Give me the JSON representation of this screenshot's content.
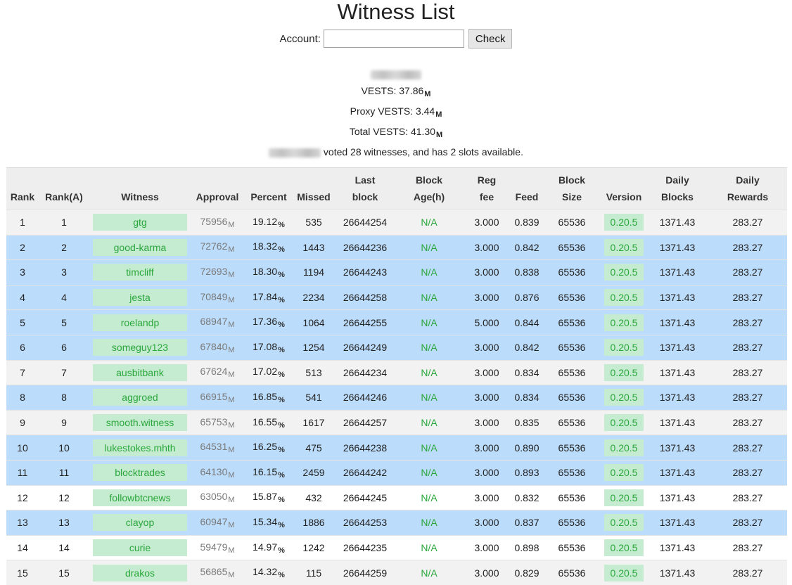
{
  "page": {
    "title": "Witness List",
    "account_label": "Account:",
    "account_value": "",
    "check_label": "Check"
  },
  "summary": {
    "vests_label": "VESTS: 37.86",
    "proxy_label": "Proxy VESTS: 3.44",
    "total_label": "Total VESTS: 41.30",
    "unit": "M",
    "voted_text": "voted 28 witnesses, and has 2 slots available."
  },
  "table": {
    "headers": {
      "rank": "Rank",
      "rank_a": "Rank(A)",
      "witness": "Witness",
      "approval": "Approval",
      "percent": "Percent",
      "missed": "Missed",
      "last_block_1": "Last",
      "last_block_2": "block",
      "block_age_1": "Block",
      "block_age_2": "Age(h)",
      "reg_fee_1": "Reg",
      "reg_fee_2": "fee",
      "feed": "Feed",
      "block_size_1": "Block",
      "block_size_2": "Size",
      "version": "Version",
      "daily_blocks_1": "Daily",
      "daily_blocks_2": "Blocks",
      "daily_rewards_1": "Daily",
      "daily_rewards_2": "Rewards"
    },
    "approval_unit": "M",
    "percent_unit": "%",
    "rows": [
      {
        "rank": "1",
        "rank_a": "1",
        "witness": "gtg",
        "approval": "75956",
        "percent": "19.12",
        "missed": "535",
        "last_block": "26644254",
        "block_age": "N/A",
        "reg_fee": "3.000",
        "feed": "0.839",
        "block_size": "65536",
        "version": "0.20.5",
        "daily_blocks": "1371.43",
        "daily_rewards": "283.27",
        "bg": "g"
      },
      {
        "rank": "2",
        "rank_a": "2",
        "witness": "good-karma",
        "approval": "72762",
        "percent": "18.32",
        "missed": "1443",
        "last_block": "26644236",
        "block_age": "N/A",
        "reg_fee": "3.000",
        "feed": "0.842",
        "block_size": "65536",
        "version": "0.20.5",
        "daily_blocks": "1371.43",
        "daily_rewards": "283.27",
        "bg": "b"
      },
      {
        "rank": "3",
        "rank_a": "3",
        "witness": "timcliff",
        "approval": "72693",
        "percent": "18.30",
        "missed": "1194",
        "last_block": "26644243",
        "block_age": "N/A",
        "reg_fee": "3.000",
        "feed": "0.838",
        "block_size": "65536",
        "version": "0.20.5",
        "daily_blocks": "1371.43",
        "daily_rewards": "283.27",
        "bg": "b"
      },
      {
        "rank": "4",
        "rank_a": "4",
        "witness": "jesta",
        "approval": "70849",
        "percent": "17.84",
        "missed": "2234",
        "last_block": "26644258",
        "block_age": "N/A",
        "reg_fee": "3.000",
        "feed": "0.876",
        "block_size": "65536",
        "version": "0.20.5",
        "daily_blocks": "1371.43",
        "daily_rewards": "283.27",
        "bg": "b"
      },
      {
        "rank": "5",
        "rank_a": "5",
        "witness": "roelandp",
        "approval": "68947",
        "percent": "17.36",
        "missed": "1064",
        "last_block": "26644255",
        "block_age": "N/A",
        "reg_fee": "5.000",
        "feed": "0.844",
        "block_size": "65536",
        "version": "0.20.5",
        "daily_blocks": "1371.43",
        "daily_rewards": "283.27",
        "bg": "b"
      },
      {
        "rank": "6",
        "rank_a": "6",
        "witness": "someguy123",
        "approval": "67840",
        "percent": "17.08",
        "missed": "1254",
        "last_block": "26644249",
        "block_age": "N/A",
        "reg_fee": "3.000",
        "feed": "0.842",
        "block_size": "65536",
        "version": "0.20.5",
        "daily_blocks": "1371.43",
        "daily_rewards": "283.27",
        "bg": "b"
      },
      {
        "rank": "7",
        "rank_a": "7",
        "witness": "ausbitbank",
        "approval": "67624",
        "percent": "17.02",
        "missed": "513",
        "last_block": "26644234",
        "block_age": "N/A",
        "reg_fee": "3.000",
        "feed": "0.834",
        "block_size": "65536",
        "version": "0.20.5",
        "daily_blocks": "1371.43",
        "daily_rewards": "283.27",
        "bg": "g"
      },
      {
        "rank": "8",
        "rank_a": "8",
        "witness": "aggroed",
        "approval": "66915",
        "percent": "16.85",
        "missed": "541",
        "last_block": "26644246",
        "block_age": "N/A",
        "reg_fee": "3.000",
        "feed": "0.834",
        "block_size": "65536",
        "version": "0.20.5",
        "daily_blocks": "1371.43",
        "daily_rewards": "283.27",
        "bg": "b"
      },
      {
        "rank": "9",
        "rank_a": "9",
        "witness": "smooth.witness",
        "approval": "65753",
        "percent": "16.55",
        "missed": "1617",
        "last_block": "26644257",
        "block_age": "N/A",
        "reg_fee": "3.000",
        "feed": "0.835",
        "block_size": "65536",
        "version": "0.20.5",
        "daily_blocks": "1371.43",
        "daily_rewards": "283.27",
        "bg": "g"
      },
      {
        "rank": "10",
        "rank_a": "10",
        "witness": "lukestokes.mhth",
        "approval": "64531",
        "percent": "16.25",
        "missed": "475",
        "last_block": "26644238",
        "block_age": "N/A",
        "reg_fee": "3.000",
        "feed": "0.890",
        "block_size": "65536",
        "version": "0.20.5",
        "daily_blocks": "1371.43",
        "daily_rewards": "283.27",
        "bg": "b"
      },
      {
        "rank": "11",
        "rank_a": "11",
        "witness": "blocktrades",
        "approval": "64130",
        "percent": "16.15",
        "missed": "2459",
        "last_block": "26644242",
        "block_age": "N/A",
        "reg_fee": "3.000",
        "feed": "0.893",
        "block_size": "65536",
        "version": "0.20.5",
        "daily_blocks": "1371.43",
        "daily_rewards": "283.27",
        "bg": "b"
      },
      {
        "rank": "12",
        "rank_a": "12",
        "witness": "followbtcnews",
        "approval": "63050",
        "percent": "15.87",
        "missed": "432",
        "last_block": "26644245",
        "block_age": "N/A",
        "reg_fee": "3.000",
        "feed": "0.832",
        "block_size": "65536",
        "version": "0.20.5",
        "daily_blocks": "1371.43",
        "daily_rewards": "283.27",
        "bg": "w"
      },
      {
        "rank": "13",
        "rank_a": "13",
        "witness": "clayop",
        "approval": "60947",
        "percent": "15.34",
        "missed": "1886",
        "last_block": "26644253",
        "block_age": "N/A",
        "reg_fee": "3.000",
        "feed": "0.837",
        "block_size": "65536",
        "version": "0.20.5",
        "daily_blocks": "1371.43",
        "daily_rewards": "283.27",
        "bg": "b"
      },
      {
        "rank": "14",
        "rank_a": "14",
        "witness": "curie",
        "approval": "59479",
        "percent": "14.97",
        "missed": "1242",
        "last_block": "26644235",
        "block_age": "N/A",
        "reg_fee": "3.000",
        "feed": "0.898",
        "block_size": "65536",
        "version": "0.20.5",
        "daily_blocks": "1371.43",
        "daily_rewards": "283.27",
        "bg": "w"
      },
      {
        "rank": "15",
        "rank_a": "15",
        "witness": "drakos",
        "approval": "56865",
        "percent": "14.32",
        "missed": "115",
        "last_block": "26644259",
        "block_age": "N/A",
        "reg_fee": "3.000",
        "feed": "0.829",
        "block_size": "65536",
        "version": "0.20.5",
        "daily_blocks": "1371.43",
        "daily_rewards": "283.27",
        "bg": "g"
      }
    ]
  }
}
